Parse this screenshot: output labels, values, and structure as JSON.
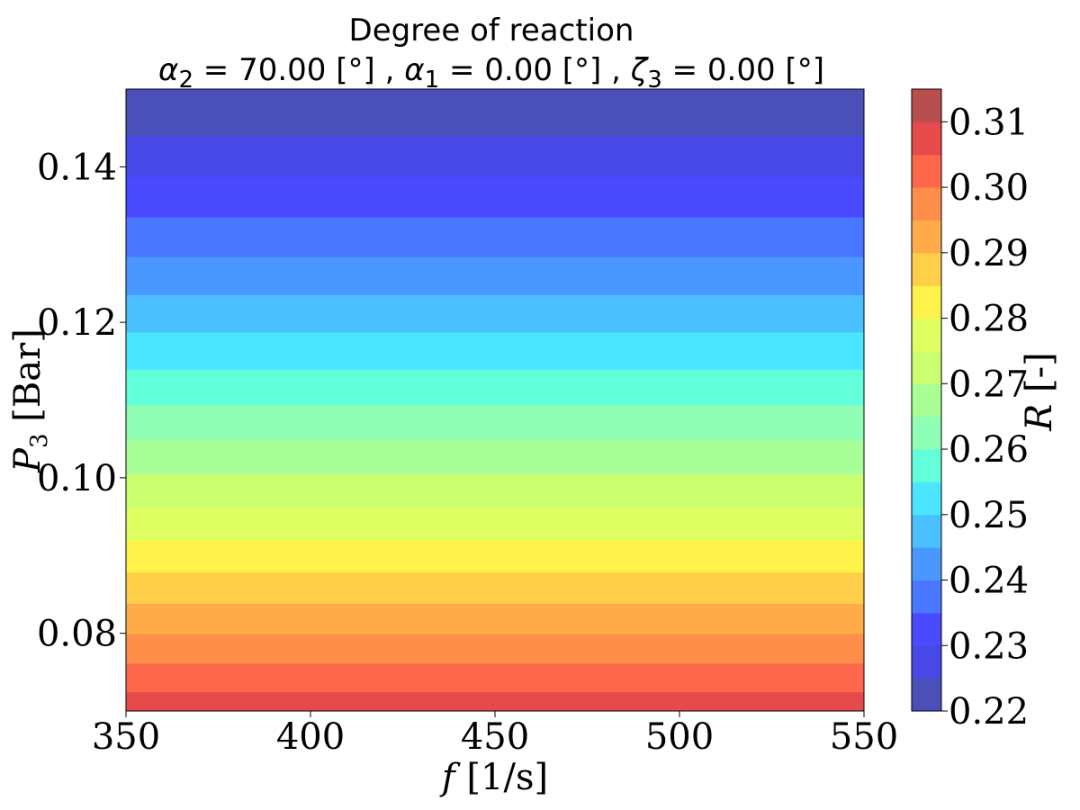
{
  "chart_data": {
    "type": "heatmap",
    "title": "Degree of reaction",
    "subtitle": {
      "terms": [
        {
          "sym": "α",
          "idx": "2",
          "value": "70.00",
          "unit": "[°]"
        },
        {
          "sym": "α",
          "idx": "1",
          "value": "0.00",
          "unit": "[°]"
        },
        {
          "sym": "ζ",
          "idx": "3",
          "value": "0.00",
          "unit": "[°]"
        }
      ],
      "separator": " , "
    },
    "xlabel": {
      "symbol": "f",
      "unit": "[1/s]"
    },
    "ylabel": {
      "symbol": "P",
      "sub": "3",
      "unit": "[Bar]"
    },
    "colorbar_label": {
      "symbol": "R",
      "unit": "[-]"
    },
    "xlim": [
      350,
      550
    ],
    "ylim": [
      0.07,
      0.15
    ],
    "xticks": [
      350,
      400,
      450,
      500,
      550
    ],
    "xtick_labels": [
      "350",
      "400",
      "450",
      "500",
      "550"
    ],
    "yticks": [
      0.08,
      0.1,
      0.12,
      0.14
    ],
    "ytick_labels": [
      "0.08",
      "0.10",
      "0.12",
      "0.14"
    ],
    "colorbar_range": [
      0.22,
      0.315
    ],
    "colorbar_ticks": [
      0.22,
      0.23,
      0.24,
      0.25,
      0.26,
      0.27,
      0.28,
      0.29,
      0.3,
      0.31
    ],
    "colorbar_tick_labels": [
      "0.22",
      "0.23",
      "0.24",
      "0.25",
      "0.26",
      "0.27",
      "0.28",
      "0.29",
      "0.30",
      "0.31"
    ],
    "colormap": "jet",
    "level_colors": [
      "#4a50b8",
      "#4848e6",
      "#4a4aff",
      "#4977ff",
      "#4a98ff",
      "#4ac0ff",
      "#4ae6ff",
      "#63ffdb",
      "#8fffb5",
      "#a8ff96",
      "#ccff70",
      "#e0ff63",
      "#fff24a",
      "#ffcf4a",
      "#ffab4a",
      "#ff8e4a",
      "#ff674a",
      "#e64a4a",
      "#b84e4e"
    ],
    "bands": [
      {
        "y0": 0.15,
        "y1": 0.144,
        "level": 0
      },
      {
        "y0": 0.144,
        "y1": 0.1387,
        "level": 1
      },
      {
        "y0": 0.1387,
        "y1": 0.1335,
        "level": 2
      },
      {
        "y0": 0.1335,
        "y1": 0.1284,
        "level": 3
      },
      {
        "y0": 0.1284,
        "y1": 0.1235,
        "level": 4
      },
      {
        "y0": 0.1235,
        "y1": 0.1187,
        "level": 5
      },
      {
        "y0": 0.1187,
        "y1": 0.1139,
        "level": 6
      },
      {
        "y0": 0.1139,
        "y1": 0.1093,
        "level": 7
      },
      {
        "y0": 0.1093,
        "y1": 0.1048,
        "level": 8
      },
      {
        "y0": 0.1048,
        "y1": 0.1004,
        "level": 9
      },
      {
        "y0": 0.1004,
        "y1": 0.0961,
        "level": 10
      },
      {
        "y0": 0.0961,
        "y1": 0.0919,
        "level": 11
      },
      {
        "y0": 0.0919,
        "y1": 0.0878,
        "level": 12
      },
      {
        "y0": 0.0878,
        "y1": 0.0838,
        "level": 13
      },
      {
        "y0": 0.0838,
        "y1": 0.0799,
        "level": 14
      },
      {
        "y0": 0.0799,
        "y1": 0.0761,
        "level": 15
      },
      {
        "y0": 0.0761,
        "y1": 0.0724,
        "level": 16
      },
      {
        "y0": 0.0724,
        "y1": 0.07,
        "level": 17
      }
    ]
  }
}
